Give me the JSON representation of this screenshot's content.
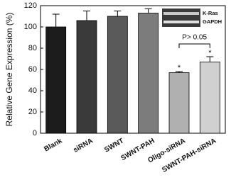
{
  "chart_data": {
    "type": "bar",
    "ylabel": "Relative Gene Expression (%)",
    "categories": [
      "Blank",
      "siRNA",
      "SWNT",
      "SWNT-PAH",
      "Oligo-siRNA",
      "SWNT-PAH-siRNA"
    ],
    "values": [
      100,
      106,
      110,
      113,
      57,
      67
    ],
    "errors": [
      12,
      9,
      5,
      4,
      1,
      5
    ],
    "colors": [
      "#1c1c1c",
      "#3a3a3a",
      "#5a5a5a",
      "#7c7c7c",
      "#b0b0b0",
      "#d0d0d0"
    ],
    "ylim": [
      0,
      120
    ],
    "yticks": [
      0,
      20,
      40,
      60,
      80,
      100,
      120
    ],
    "significance_marks": [
      "*",
      "*"
    ],
    "bracket_label": "P> 0.05",
    "inset_labels": [
      "K-Ras",
      "GAPDH"
    ]
  }
}
